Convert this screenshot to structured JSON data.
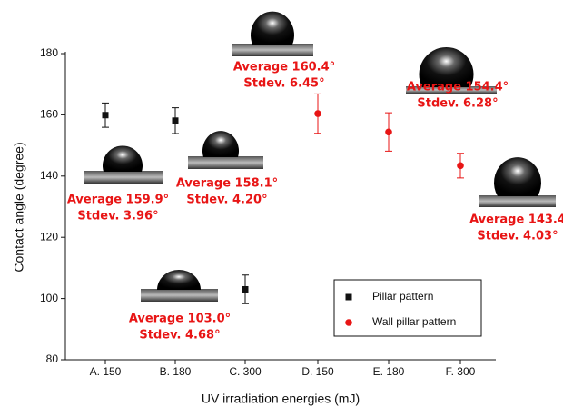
{
  "chart_data": {
    "type": "errorbar",
    "x_label": "UV irradiation energies (mJ)",
    "y_label": "Contact angle (degree)",
    "categories": [
      "A. 150",
      "B. 180",
      "C. 300",
      "D. 150",
      "E. 180",
      "F. 300"
    ],
    "ylim": [
      80,
      180
    ],
    "yticks": [
      80,
      100,
      120,
      140,
      160,
      180
    ],
    "legend": "lower right",
    "series": [
      {
        "name": "Pillar pattern",
        "color": "#111111",
        "marker": "square",
        "values": [
          159.9,
          158.1,
          103.0,
          null,
          null,
          null
        ],
        "errors": [
          3.96,
          4.2,
          4.68,
          null,
          null,
          null
        ]
      },
      {
        "name": "Wall pillar pattern",
        "color": "#e81515",
        "marker": "circle",
        "values": [
          null,
          null,
          null,
          160.4,
          154.4,
          143.4
        ],
        "errors": [
          null,
          null,
          null,
          6.45,
          6.28,
          4.03
        ]
      }
    ],
    "annotations": [
      {
        "lines": [
          "Average 159.9°",
          "Stdev. 3.96°"
        ]
      },
      {
        "lines": [
          "Average 158.1°",
          "Stdev. 4.20°"
        ]
      },
      {
        "lines": [
          "Average 103.0°",
          "Stdev. 4.68°"
        ]
      },
      {
        "lines": [
          "Average 160.4°",
          "Stdev. 6.45°"
        ]
      },
      {
        "lines": [
          "Average 154.4°",
          "Stdev. 6.28°"
        ]
      },
      {
        "lines": [
          "Average 143.4",
          "Stdev. 4.03°"
        ]
      }
    ]
  }
}
